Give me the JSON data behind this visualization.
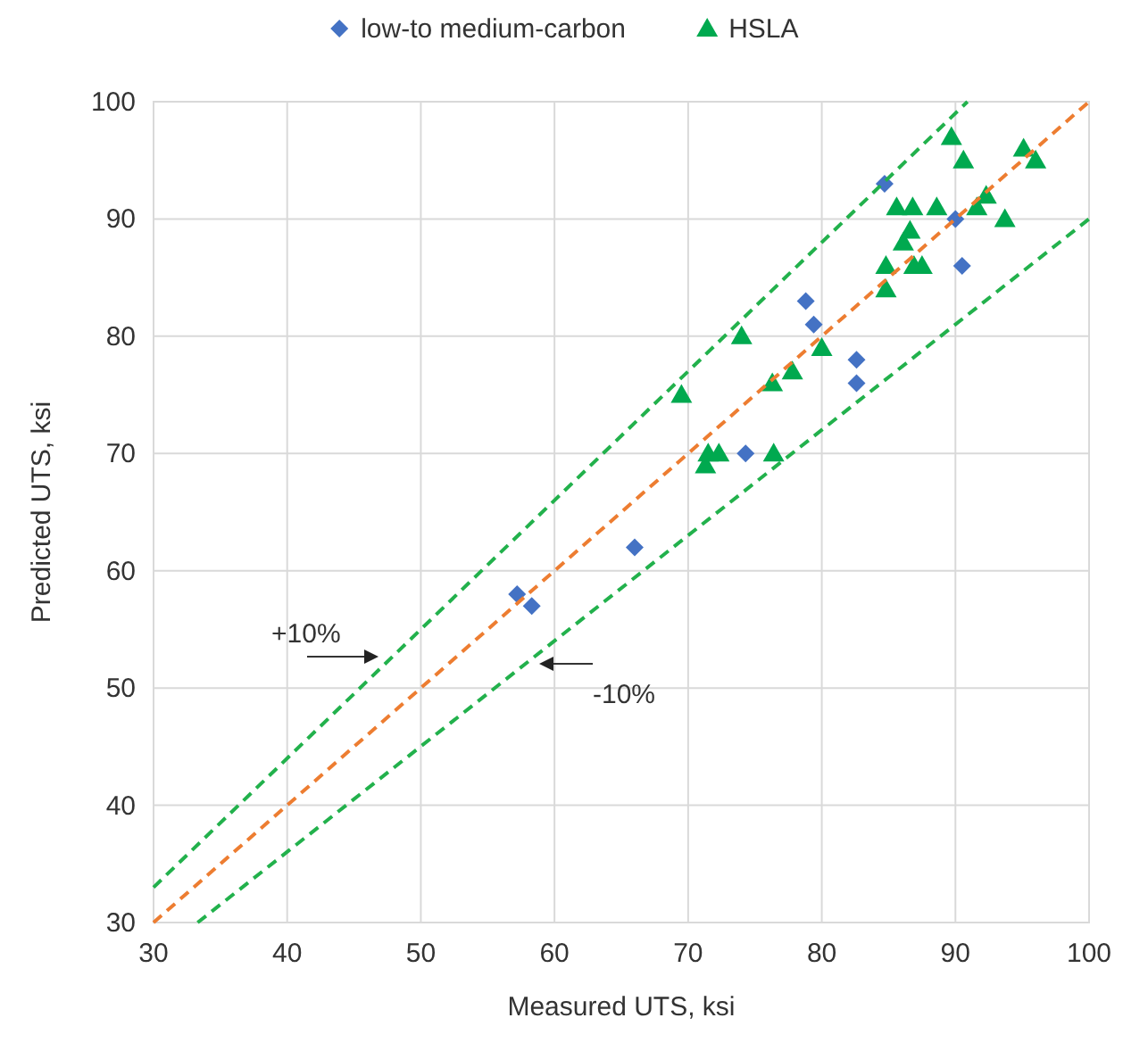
{
  "chart_data": {
    "type": "scatter",
    "xlabel": "Measured UTS, ksi",
    "ylabel": "Predicted UTS, ksi",
    "xlim": [
      30,
      100
    ],
    "ylim": [
      30,
      100
    ],
    "xticks": [
      30,
      40,
      50,
      60,
      70,
      80,
      90,
      100
    ],
    "yticks": [
      30,
      40,
      50,
      60,
      70,
      80,
      90,
      100
    ],
    "grid": true,
    "legend": "top",
    "series": [
      {
        "name": "low-to medium-carbon",
        "color": "#4472c4",
        "marker": "diamond",
        "x": [
          57.2,
          58.3,
          66,
          74.3,
          78.8,
          79.4,
          82.6,
          82.6,
          84.7,
          90,
          90.5
        ],
        "values": [
          58,
          57,
          62,
          70,
          83,
          81,
          78,
          76,
          93,
          90,
          86
        ]
      },
      {
        "name": "HSLA",
        "color": "#00a94f",
        "marker": "triangle",
        "x": [
          69.5,
          71.3,
          71.5,
          72.3,
          74,
          76.3,
          76.4,
          77.8,
          80,
          84.8,
          84.8,
          85.6,
          86.1,
          86.6,
          86.8,
          86.9,
          87.5,
          88.6,
          89.7,
          90.6,
          91.6,
          92.3,
          93.7,
          95.1,
          96
        ],
        "values": [
          75,
          69,
          70,
          70,
          80,
          76,
          70,
          77,
          79,
          86,
          84,
          91,
          88,
          89,
          91,
          86,
          86,
          91,
          97,
          95,
          91,
          92,
          90,
          96,
          95
        ]
      },
      {
        "type": "line",
        "color": "#ed7d31",
        "line_style": "dashed",
        "marker": "none",
        "x": [
          30,
          100
        ],
        "values": [
          30,
          100
        ]
      },
      {
        "type": "line",
        "color": "#22b14c",
        "line_style": "dashed",
        "marker": "none",
        "x": [
          30,
          90.9
        ],
        "values": [
          33,
          100
        ]
      },
      {
        "type": "line",
        "color": "#22b14c",
        "line_style": "dashed",
        "marker": "none",
        "x": [
          33.3,
          100
        ],
        "values": [
          30,
          90
        ]
      }
    ],
    "annotations": [
      "+10%",
      "-10%"
    ]
  }
}
